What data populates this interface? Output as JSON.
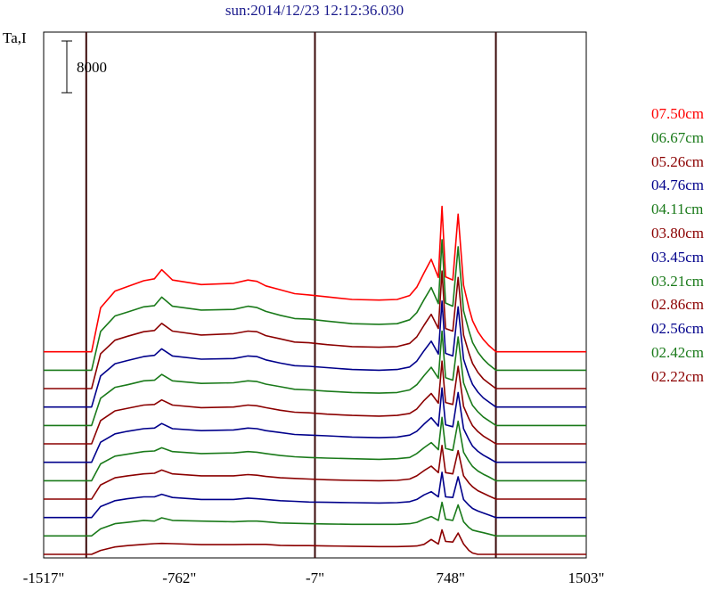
{
  "title": "sun:2014/12/23 12:12:36.030",
  "ylabel": "Ta,I",
  "scale_bar_label": "8000",
  "chart_data": {
    "type": "line",
    "title": "sun:2014/12/23 12:12:36.030",
    "ylabel": "Ta,I",
    "xlabel": "",
    "xlim": [
      -1517,
      1503
    ],
    "x_tick_labels": [
      "-1517\"",
      "-762\"",
      "-7\"",
      "748\"",
      "1503\""
    ],
    "x_ticks": [
      -1517,
      -762,
      -7,
      748,
      1503
    ],
    "vertical_markers": [
      -1280,
      -7,
      1000
    ],
    "scale_bar": 8000,
    "offset_step": 2850,
    "x": [
      -1517,
      -1420,
      -1340,
      -1290,
      -1270,
      -1250,
      -1200,
      -1120,
      -1050,
      -960,
      -900,
      -860,
      -800,
      -640,
      -460,
      -380,
      -330,
      -280,
      -200,
      -120,
      -40,
      60,
      200,
      350,
      450,
      520,
      560,
      600,
      640,
      680,
      700,
      720,
      760,
      790,
      820,
      850,
      870,
      900,
      930,
      960,
      1000,
      1060,
      1150,
      1300,
      1400,
      1503
    ],
    "series": [
      {
        "name": "02.22cm",
        "color": "#8b0000",
        "values": [
          0,
          0,
          0,
          0,
          0,
          0,
          600,
          1150,
          1350,
          1550,
          1650,
          1700,
          1650,
          1500,
          1500,
          1550,
          1550,
          1550,
          1400,
          1350,
          1350,
          1300,
          1250,
          1200,
          1200,
          1250,
          1300,
          1550,
          2300,
          1600,
          3800,
          2000,
          1900,
          3300,
          1600,
          600,
          200,
          0,
          0,
          0,
          0,
          0,
          0,
          0,
          0,
          0
        ]
      },
      {
        "name": "02.42cm",
        "color": "#1a7a1a",
        "values": [
          0,
          0,
          0,
          0,
          0,
          0,
          1100,
          1900,
          2100,
          2400,
          2300,
          2800,
          2400,
          2300,
          2200,
          2300,
          2300,
          2200,
          2000,
          1950,
          1900,
          1850,
          1800,
          1800,
          1800,
          1900,
          2100,
          2600,
          3000,
          2400,
          5200,
          2600,
          2400,
          4800,
          2200,
          1300,
          900,
          700,
          500,
          300,
          0,
          0,
          0,
          0,
          0,
          0
        ]
      },
      {
        "name": "02.56cm",
        "color": "#00008b",
        "values": [
          0,
          0,
          0,
          0,
          0,
          0,
          1700,
          2600,
          2900,
          3200,
          3200,
          3600,
          3100,
          2800,
          2800,
          3000,
          2900,
          2800,
          2600,
          2500,
          2400,
          2350,
          2300,
          2250,
          2300,
          2450,
          2800,
          3500,
          4000,
          3200,
          7000,
          3200,
          3100,
          6300,
          2800,
          1900,
          1400,
          1000,
          700,
          400,
          0,
          0,
          0,
          0,
          0,
          0
        ]
      },
      {
        "name": "02.86cm",
        "color": "#8b0000",
        "values": [
          0,
          0,
          0,
          0,
          0,
          0,
          2200,
          3300,
          3600,
          3900,
          4000,
          4500,
          3900,
          3600,
          3600,
          3800,
          3700,
          3500,
          3300,
          3200,
          3100,
          3000,
          2900,
          2850,
          2900,
          3100,
          3600,
          4400,
          5100,
          4100,
          8300,
          4100,
          3900,
          7500,
          3600,
          2500,
          1900,
          1300,
          900,
          500,
          0,
          0,
          0,
          0,
          0,
          0
        ]
      },
      {
        "name": "03.21cm",
        "color": "#1a7a1a",
        "values": [
          0,
          0,
          0,
          0,
          0,
          0,
          2600,
          3800,
          4100,
          4500,
          4600,
          5100,
          4500,
          4200,
          4300,
          4500,
          4400,
          4200,
          3900,
          3700,
          3600,
          3500,
          3400,
          3300,
          3400,
          3600,
          4200,
          5100,
          5900,
          4800,
          9800,
          5000,
          4700,
          9200,
          4400,
          3000,
          2200,
          1500,
          1000,
          600,
          0,
          0,
          0,
          0,
          0,
          0
        ]
      },
      {
        "name": "03.45cm",
        "color": "#00008b",
        "values": [
          0,
          0,
          0,
          0,
          0,
          0,
          3100,
          4400,
          4800,
          5200,
          5300,
          6000,
          5200,
          4900,
          5000,
          5300,
          5200,
          4900,
          4600,
          4300,
          4200,
          4100,
          3900,
          3800,
          3900,
          4200,
          4800,
          5900,
          6900,
          5600,
          11500,
          5800,
          5500,
          10800,
          5200,
          3500,
          2500,
          1700,
          1100,
          650,
          0,
          0,
          0,
          0,
          0,
          0
        ]
      },
      {
        "name": "03.80cm",
        "color": "#8b0000",
        "values": [
          0,
          0,
          0,
          0,
          0,
          0,
          3600,
          5100,
          5500,
          6000,
          6100,
          6800,
          6000,
          5600,
          5700,
          6000,
          5900,
          5600,
          5200,
          4900,
          4800,
          4600,
          4400,
          4300,
          4400,
          4700,
          5400,
          6700,
          7800,
          6300,
          12800,
          6400,
          6100,
          12000,
          5800,
          3900,
          2800,
          1900,
          1200,
          700,
          0,
          0,
          0,
          0,
          0,
          0
        ]
      },
      {
        "name": "04.11cm",
        "color": "#1a7a1a",
        "values": [
          0,
          0,
          0,
          0,
          0,
          0,
          4200,
          5900,
          6300,
          6900,
          7000,
          7900,
          6900,
          6500,
          6600,
          6900,
          6800,
          6400,
          6000,
          5600,
          5500,
          5300,
          5100,
          5000,
          5100,
          5500,
          6300,
          7700,
          9000,
          7300,
          14600,
          7400,
          7000,
          13700,
          6600,
          4400,
          3100,
          2100,
          1300,
          750,
          0,
          0,
          0,
          0,
          0,
          0
        ]
      },
      {
        "name": "04.76cm",
        "color": "#00008b",
        "values": [
          0,
          0,
          0,
          0,
          0,
          0,
          4800,
          6700,
          7200,
          7800,
          8000,
          9000,
          7900,
          7400,
          7500,
          7900,
          7800,
          7300,
          6800,
          6400,
          6300,
          6100,
          5800,
          5700,
          5800,
          6200,
          7100,
          8700,
          10200,
          8200,
          16400,
          8300,
          7900,
          15500,
          7400,
          4900,
          3500,
          2300,
          1400,
          800,
          0,
          0,
          0,
          0,
          0,
          0
        ]
      },
      {
        "name": "05.26cm",
        "color": "#8b0000",
        "values": [
          0,
          0,
          0,
          0,
          0,
          0,
          5400,
          7500,
          8100,
          8800,
          9000,
          10100,
          8900,
          8300,
          8500,
          8900,
          8800,
          8200,
          7700,
          7200,
          7100,
          6800,
          6500,
          6400,
          6500,
          7000,
          8000,
          9800,
          11500,
          9300,
          18200,
          9300,
          8900,
          17200,
          8300,
          5500,
          3900,
          2500,
          1500,
          850,
          0,
          0,
          0,
          0,
          0,
          0
        ]
      },
      {
        "name": "06.67cm",
        "color": "#1a7a1a",
        "values": [
          0,
          0,
          0,
          0,
          0,
          0,
          6000,
          8400,
          9000,
          9800,
          10000,
          11300,
          9900,
          9300,
          9400,
          9900,
          9700,
          9100,
          8500,
          8000,
          7900,
          7600,
          7200,
          7100,
          7200,
          7800,
          8900,
          10900,
          12800,
          10300,
          20200,
          10400,
          9900,
          19100,
          9200,
          6100,
          4300,
          2800,
          1700,
          900,
          0,
          0,
          0,
          0,
          0,
          0
        ]
      },
      {
        "name": "07.50cm",
        "color": "#ff0000",
        "values": [
          0,
          0,
          0,
          0,
          0,
          0,
          6800,
          9400,
          10100,
          11000,
          11300,
          12700,
          11100,
          10400,
          10600,
          11100,
          10900,
          10200,
          9600,
          9000,
          8800,
          8500,
          8100,
          8000,
          8100,
          8700,
          10000,
          12200,
          14300,
          11500,
          22500,
          11600,
          11100,
          21300,
          10300,
          6800,
          4800,
          3100,
          1900,
          1000,
          0,
          0,
          0,
          0,
          0,
          0
        ]
      }
    ]
  },
  "legend": [
    {
      "label": "07.50cm",
      "color": "#ff0000"
    },
    {
      "label": "06.67cm",
      "color": "#1a7a1a"
    },
    {
      "label": "05.26cm",
      "color": "#8b0000"
    },
    {
      "label": "04.76cm",
      "color": "#00008b"
    },
    {
      "label": "04.11cm",
      "color": "#1a7a1a"
    },
    {
      "label": "03.80cm",
      "color": "#8b0000"
    },
    {
      "label": "03.45cm",
      "color": "#00008b"
    },
    {
      "label": "03.21cm",
      "color": "#1a7a1a"
    },
    {
      "label": "02.86cm",
      "color": "#8b0000"
    },
    {
      "label": "02.56cm",
      "color": "#00008b"
    },
    {
      "label": "02.42cm",
      "color": "#1a7a1a"
    },
    {
      "label": "02.22cm",
      "color": "#8b0000"
    }
  ]
}
